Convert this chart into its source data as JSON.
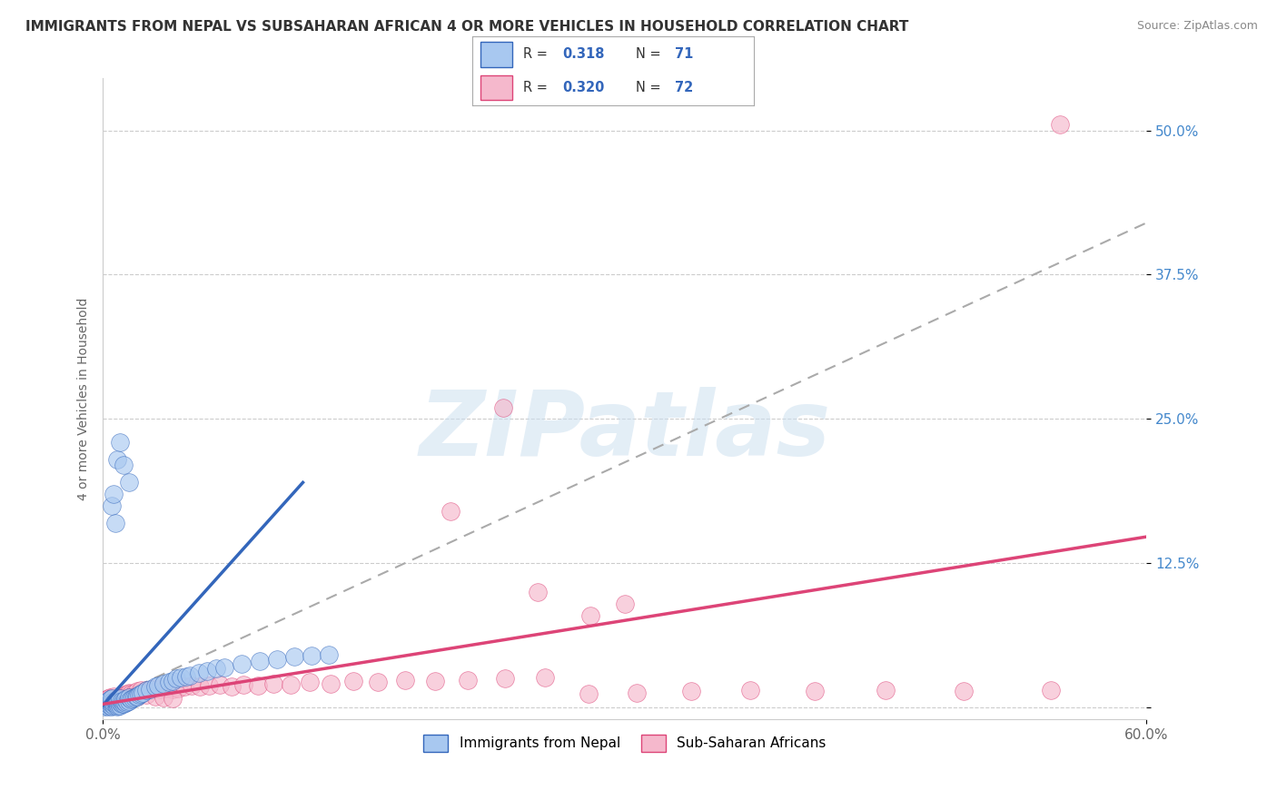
{
  "title": "IMMIGRANTS FROM NEPAL VS SUBSAHARAN AFRICAN 4 OR MORE VEHICLES IN HOUSEHOLD CORRELATION CHART",
  "source": "Source: ZipAtlas.com",
  "ylabel": "4 or more Vehicles in Household",
  "xlim": [
    0.0,
    0.6
  ],
  "ylim": [
    -0.01,
    0.545
  ],
  "xticks": [
    0.0,
    0.6
  ],
  "xticklabels": [
    "0.0%",
    "60.0%"
  ],
  "yticks": [
    0.0,
    0.125,
    0.25,
    0.375,
    0.5
  ],
  "yticklabels": [
    "",
    "12.5%",
    "25.0%",
    "37.5%",
    "50.0%"
  ],
  "legend_labels": [
    "Immigrants from Nepal",
    "Sub-Saharan Africans"
  ],
  "nepal_color": "#a8c8f0",
  "nepal_line_color": "#3366bb",
  "subsaharan_color": "#f5b8cc",
  "subsaharan_line_color": "#dd4477",
  "watermark": "ZIPatlas",
  "background_color": "#ffffff",
  "grid_color": "#cccccc",
  "nepal_x": [
    0.001,
    0.001,
    0.002,
    0.002,
    0.003,
    0.003,
    0.003,
    0.004,
    0.004,
    0.004,
    0.005,
    0.005,
    0.005,
    0.005,
    0.006,
    0.006,
    0.007,
    0.007,
    0.008,
    0.008,
    0.008,
    0.009,
    0.009,
    0.01,
    0.01,
    0.01,
    0.011,
    0.011,
    0.012,
    0.012,
    0.013,
    0.013,
    0.014,
    0.015,
    0.015,
    0.016,
    0.017,
    0.018,
    0.019,
    0.02,
    0.021,
    0.022,
    0.023,
    0.025,
    0.027,
    0.03,
    0.032,
    0.035,
    0.038,
    0.04,
    0.042,
    0.045,
    0.048,
    0.05,
    0.055,
    0.06,
    0.065,
    0.07,
    0.08,
    0.09,
    0.1,
    0.11,
    0.12,
    0.13,
    0.008,
    0.01,
    0.012,
    0.015,
    0.005,
    0.006,
    0.007
  ],
  "nepal_y": [
    0.001,
    0.003,
    0.002,
    0.005,
    0.001,
    0.003,
    0.006,
    0.002,
    0.004,
    0.007,
    0.001,
    0.003,
    0.005,
    0.008,
    0.002,
    0.004,
    0.003,
    0.006,
    0.001,
    0.004,
    0.007,
    0.002,
    0.005,
    0.002,
    0.005,
    0.008,
    0.003,
    0.006,
    0.003,
    0.006,
    0.004,
    0.007,
    0.005,
    0.006,
    0.009,
    0.007,
    0.008,
    0.009,
    0.01,
    0.01,
    0.011,
    0.012,
    0.013,
    0.015,
    0.016,
    0.018,
    0.019,
    0.021,
    0.022,
    0.023,
    0.025,
    0.026,
    0.027,
    0.028,
    0.03,
    0.032,
    0.034,
    0.035,
    0.038,
    0.04,
    0.042,
    0.044,
    0.045,
    0.046,
    0.215,
    0.23,
    0.21,
    0.195,
    0.175,
    0.185,
    0.16
  ],
  "subsaharan_x": [
    0.001,
    0.002,
    0.002,
    0.003,
    0.003,
    0.004,
    0.004,
    0.005,
    0.005,
    0.006,
    0.006,
    0.007,
    0.008,
    0.009,
    0.01,
    0.011,
    0.012,
    0.013,
    0.014,
    0.015,
    0.016,
    0.018,
    0.02,
    0.022,
    0.025,
    0.028,
    0.03,
    0.033,
    0.036,
    0.04,
    0.043,
    0.047,
    0.051,
    0.056,
    0.061,
    0.067,
    0.074,
    0.081,
    0.089,
    0.098,
    0.108,
    0.119,
    0.131,
    0.144,
    0.158,
    0.174,
    0.191,
    0.21,
    0.231,
    0.254,
    0.279,
    0.307,
    0.338,
    0.372,
    0.409,
    0.45,
    0.495,
    0.545,
    0.005,
    0.01,
    0.015,
    0.02,
    0.025,
    0.03,
    0.035,
    0.04,
    0.2,
    0.23,
    0.25,
    0.28,
    0.3,
    0.55
  ],
  "subsaharan_y": [
    0.005,
    0.004,
    0.007,
    0.003,
    0.008,
    0.004,
    0.009,
    0.003,
    0.008,
    0.004,
    0.01,
    0.005,
    0.006,
    0.007,
    0.008,
    0.009,
    0.01,
    0.011,
    0.012,
    0.013,
    0.012,
    0.013,
    0.014,
    0.015,
    0.015,
    0.016,
    0.017,
    0.016,
    0.017,
    0.016,
    0.017,
    0.018,
    0.019,
    0.018,
    0.019,
    0.02,
    0.018,
    0.02,
    0.019,
    0.021,
    0.02,
    0.022,
    0.021,
    0.023,
    0.022,
    0.024,
    0.023,
    0.024,
    0.025,
    0.026,
    0.012,
    0.013,
    0.014,
    0.015,
    0.014,
    0.015,
    0.014,
    0.015,
    0.006,
    0.008,
    0.009,
    0.01,
    0.011,
    0.01,
    0.009,
    0.008,
    0.17,
    0.26,
    0.1,
    0.08,
    0.09,
    0.505
  ],
  "nepal_trend_x": [
    0.0,
    0.115
  ],
  "nepal_trend_y": [
    0.002,
    0.195
  ],
  "sub_trend_x": [
    0.0,
    0.6
  ],
  "sub_trend_y": [
    0.003,
    0.148
  ],
  "dash_trend_x": [
    0.0,
    0.6
  ],
  "dash_trend_y": [
    0.005,
    0.42
  ]
}
